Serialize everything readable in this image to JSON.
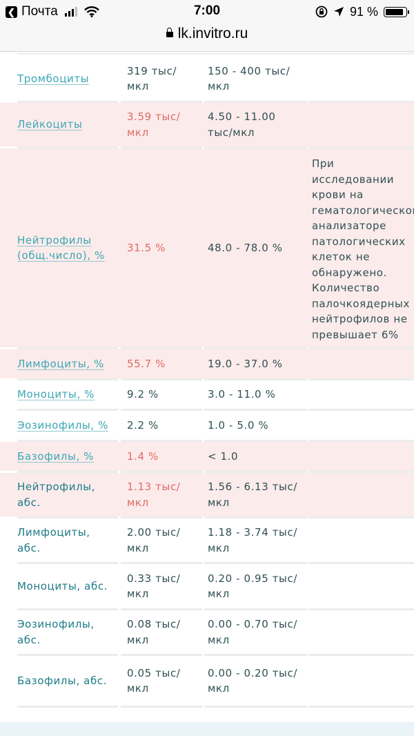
{
  "statusbar": {
    "back_app": "Почта",
    "time": "7:00",
    "battery_percent": "91 %",
    "battery_level": 0.91,
    "url": "lk.invitro.ru"
  },
  "results": [
    {
      "name": "Тромбоциты",
      "value": "319 тыс/\nмкл",
      "ref": "150 - 400 тыс/\nмкл",
      "note": "",
      "flag": false,
      "link": true
    },
    {
      "name": "Лейкоциты",
      "value": "3.59 тыс/\nмкл",
      "ref": "4.50 - 11.00\nтыс/мкл",
      "note": "",
      "flag": true,
      "link": true
    },
    {
      "name": "Нейтрофилы\n(общ.число), %",
      "value": "31.5 %",
      "ref": "48.0 - 78.0 %",
      "note": "При\nисследовании\nкрови на\nгематологическом\nанализаторе\nпатологических\nклеток не\nобнаружено.\nКоличество\nпалочкоядерных\nнейтрофилов не\nпревышает 6%",
      "flag": true,
      "link": true
    },
    {
      "name": "Лимфоциты, %",
      "value": "55.7 %",
      "ref": "19.0 - 37.0 %",
      "note": "",
      "flag": true,
      "link": true
    },
    {
      "name": "Моноциты, %",
      "value": "9.2 %",
      "ref": "3.0 - 11.0 %",
      "note": "",
      "flag": false,
      "link": true
    },
    {
      "name": "Эозинофилы, %",
      "value": "2.2 %",
      "ref": "1.0 - 5.0 %",
      "note": "",
      "flag": false,
      "link": true
    },
    {
      "name": "Базофилы, %",
      "value": "1.4 %",
      "ref": "< 1.0",
      "note": "",
      "flag": true,
      "link": true
    },
    {
      "name": "Нейтрофилы,\nабс.",
      "value": "1.13 тыс/\nмкл",
      "ref": "1.56 - 6.13 тыс/\nмкл",
      "note": "",
      "flag": true,
      "link": false
    },
    {
      "name": "Лимфоциты,\nабс.",
      "value": "2.00 тыс/\nмкл",
      "ref": "1.18 - 3.74 тыс/\nмкл",
      "note": "",
      "flag": false,
      "link": false
    },
    {
      "name": "Моноциты, абс.",
      "value": "0.33 тыс/\nмкл",
      "ref": "0.20 - 0.95 тыс/\nмкл",
      "note": "",
      "flag": false,
      "link": false
    },
    {
      "name": "Эозинофилы,\nабс.",
      "value": "0.08 тыс/\nмкл",
      "ref": "0.00 - 0.70 тыс/\nмкл",
      "note": "",
      "flag": false,
      "link": false
    },
    {
      "name": "Базофилы, абс.",
      "value": "0.05 тыс/\nмкл",
      "ref": "0.00 - 0.20 тыс/\nмкл",
      "note": "",
      "flag": false,
      "link": false
    }
  ]
}
